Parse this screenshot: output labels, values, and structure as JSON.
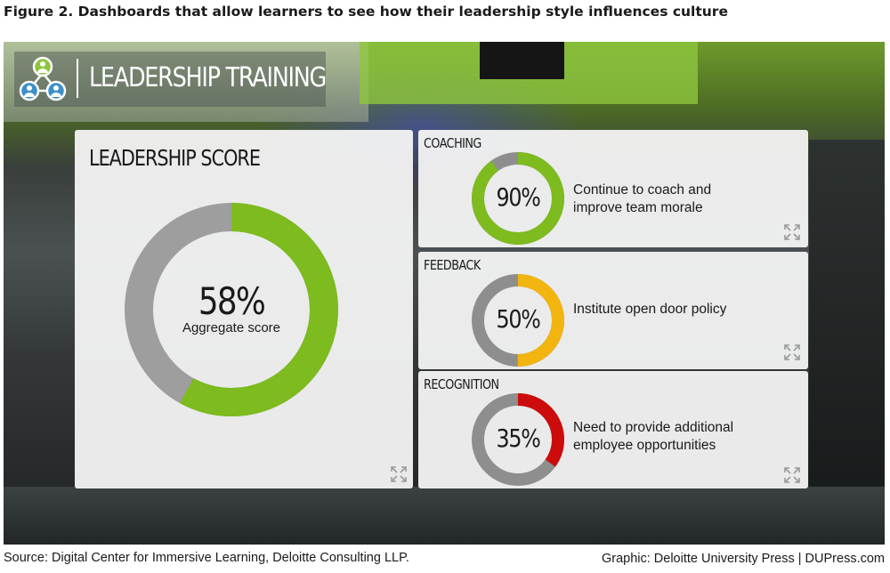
{
  "figure": {
    "title": "Figure 2. Dashboards that allow learners to see how their leadership style influences culture",
    "source": "Source: Digital Center for Immersive Learning, Deloitte Consulting LLP.",
    "credit": "Graphic: Deloitte University Press  |  DUPress.com"
  },
  "header": {
    "title": "LEADERSHIP TRAINING",
    "logo_icon": "people-network-icon"
  },
  "leadership_score": {
    "title": "LEADERSHIP SCORE",
    "percent": 58,
    "value_label": "58%",
    "caption": "Aggregate score",
    "color": "#7dbb1e",
    "track_color": "#9e9e9e"
  },
  "metrics": [
    {
      "title": "COACHING",
      "percent": 90,
      "value_label": "90%",
      "color": "#7dbb1e",
      "description": "Continue to coach and improve team morale"
    },
    {
      "title": "FEEDBACK",
      "percent": 50,
      "value_label": "50%",
      "color": "#f2b40f",
      "description": "Institute open door policy"
    },
    {
      "title": "RECOGNITION",
      "percent": 35,
      "value_label": "35%",
      "color": "#cc0c0c",
      "description": "Need to provide additional employee opportunities"
    }
  ],
  "icons": {
    "expand": "expand-icon"
  },
  "colors": {
    "track": "#8e8e8e"
  }
}
